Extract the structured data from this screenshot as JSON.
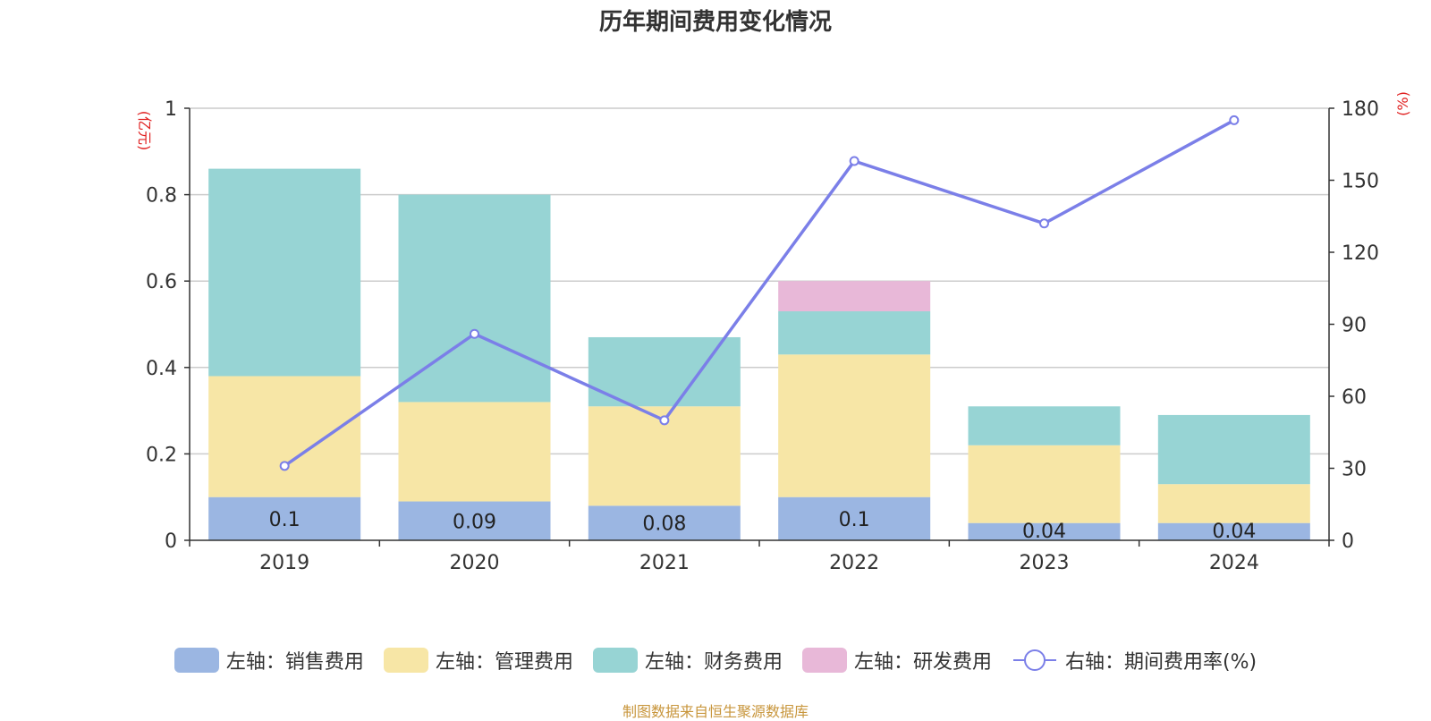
{
  "chart_data": {
    "type": "bar",
    "title": "历年期间费用变化情况",
    "categories": [
      "2019",
      "2020",
      "2021",
      "2022",
      "2023",
      "2024"
    ],
    "left_axis": {
      "label": "(亿元)",
      "ylim": [
        0,
        1
      ],
      "ticks": [
        "0",
        "0.2",
        "0.4",
        "0.6",
        "0.8",
        "1"
      ]
    },
    "right_axis": {
      "label": "(%)",
      "ylim": [
        0,
        180
      ],
      "ticks": [
        "0",
        "30",
        "60",
        "90",
        "120",
        "150",
        "180"
      ]
    },
    "series": [
      {
        "name": "左轴：销售费用",
        "kind": "bar",
        "axis": "left",
        "color": "#9bb6e2",
        "values": [
          0.1,
          0.09,
          0.08,
          0.1,
          0.04,
          0.04
        ],
        "labels": [
          "0.1",
          "0.09",
          "0.08",
          "0.1",
          "0.04",
          "0.04"
        ]
      },
      {
        "name": "左轴：管理费用",
        "kind": "bar",
        "axis": "left",
        "color": "#f7e6a6",
        "values": [
          0.28,
          0.23,
          0.23,
          0.33,
          0.18,
          0.09
        ]
      },
      {
        "name": "左轴：财务费用",
        "kind": "bar",
        "axis": "left",
        "color": "#97d4d4",
        "values": [
          0.48,
          0.48,
          0.16,
          0.1,
          0.09,
          0.16
        ]
      },
      {
        "name": "左轴：研发费用",
        "kind": "bar",
        "axis": "left",
        "color": "#e8b8d8",
        "values": [
          0,
          0,
          0,
          0.07,
          0,
          0
        ]
      },
      {
        "name": "右轴：期间费用率(%)",
        "kind": "line",
        "axis": "right",
        "color": "#7b7fe8",
        "values": [
          31,
          86,
          50,
          158,
          132,
          175
        ]
      }
    ],
    "grid": true,
    "legend_position": "bottom"
  },
  "footer": "制图数据来自恒生聚源数据库"
}
